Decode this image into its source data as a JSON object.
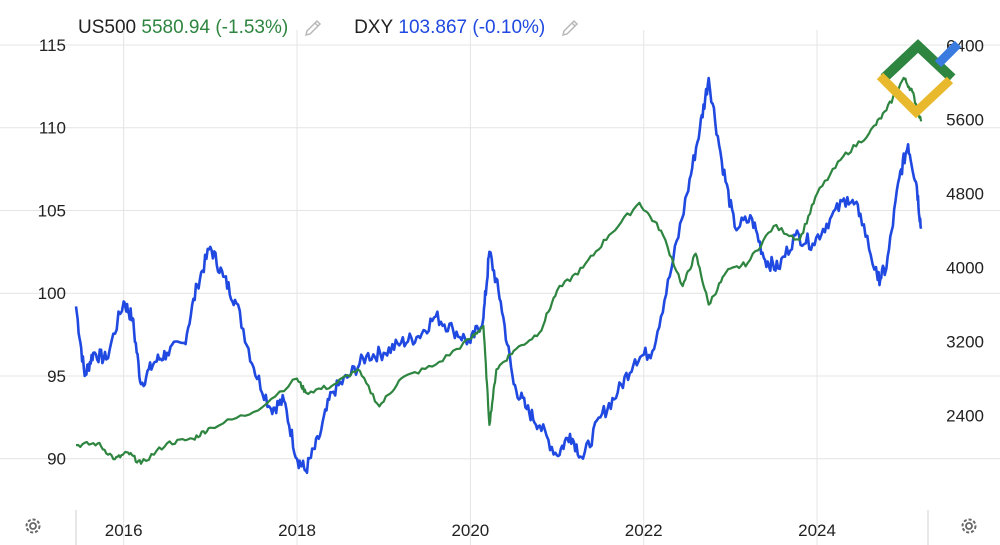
{
  "legend": [
    {
      "symbol": "US500",
      "value": "5580.94",
      "change": "(-1.53%)",
      "color": "#2e8540"
    },
    {
      "symbol": "DXY",
      "value": "103.867",
      "change": "(-0.10%)",
      "color": "#1f49e0"
    }
  ],
  "icons": {
    "edit": "pencil-icon",
    "settings": "gear-icon",
    "logo": "brand-logo"
  },
  "colors": {
    "us500": "#2e8540",
    "dxy": "#1f49e0",
    "grid": "#e4e4e4",
    "text": "#222222"
  },
  "chart_data": {
    "type": "line",
    "x_ticks": [
      "2016",
      "2018",
      "2020",
      "2022",
      "2024"
    ],
    "left_axis": {
      "ticks": [
        "115",
        "110",
        "105",
        "100",
        "95",
        "90"
      ],
      "series": "DXY",
      "ylim": [
        86.9,
        115.3
      ]
    },
    "right_axis": {
      "ticks": [
        "6400",
        "5600",
        "4800",
        "4000",
        "3200",
        "2400"
      ],
      "series": "US500",
      "ylim": [
        1380,
        6460
      ]
    },
    "xlim": [
      2015.45,
      2025.28
    ],
    "grid": true,
    "series": [
      {
        "name": "DXY",
        "axis": "left",
        "color": "#1f49e0",
        "x": [
          2015.45,
          2015.55,
          2015.65,
          2015.8,
          2016.0,
          2016.1,
          2016.2,
          2016.35,
          2016.5,
          2016.7,
          2016.85,
          2017.0,
          2017.15,
          2017.3,
          2017.5,
          2017.7,
          2017.85,
          2018.0,
          2018.1,
          2018.25,
          2018.4,
          2018.6,
          2018.8,
          2019.0,
          2019.2,
          2019.4,
          2019.6,
          2019.8,
          2020.0,
          2020.15,
          2020.22,
          2020.35,
          2020.5,
          2020.65,
          2020.8,
          2021.0,
          2021.15,
          2021.3,
          2021.5,
          2021.7,
          2021.9,
          2022.1,
          2022.3,
          2022.5,
          2022.65,
          2022.75,
          2022.9,
          2023.05,
          2023.25,
          2023.4,
          2023.55,
          2023.75,
          2023.95,
          2024.15,
          2024.35,
          2024.5,
          2024.7,
          2024.8,
          2024.95,
          2025.05,
          2025.15,
          2025.2
        ],
        "y": [
          99.2,
          95.0,
          96.4,
          96.0,
          99.5,
          98.5,
          94.5,
          95.8,
          96.4,
          97.0,
          100.5,
          102.8,
          101.0,
          99.4,
          95.5,
          93.0,
          93.5,
          90.0,
          89.3,
          91.2,
          94.0,
          95.0,
          96.2,
          96.4,
          97.0,
          97.4,
          98.6,
          97.8,
          97.0,
          98.5,
          102.5,
          99.5,
          94.5,
          93.0,
          92.0,
          90.2,
          91.5,
          90.0,
          92.5,
          94.0,
          96.0,
          96.5,
          101.0,
          106.0,
          110.0,
          113.0,
          108.0,
          104.0,
          104.5,
          102.0,
          101.5,
          103.5,
          103.0,
          104.5,
          105.8,
          104.8,
          100.8,
          101.5,
          107.0,
          109.0,
          106.5,
          103.9
        ]
      },
      {
        "name": "US500",
        "axis": "right",
        "color": "#2e8540",
        "x": [
          2015.45,
          2015.7,
          2015.9,
          2016.05,
          2016.2,
          2016.5,
          2016.8,
          2017.0,
          2017.5,
          2018.0,
          2018.1,
          2018.4,
          2018.7,
          2018.95,
          2019.2,
          2019.6,
          2020.0,
          2020.15,
          2020.22,
          2020.3,
          2020.5,
          2020.8,
          2021.0,
          2021.3,
          2021.6,
          2021.95,
          2022.2,
          2022.45,
          2022.6,
          2022.75,
          2022.95,
          2023.2,
          2023.5,
          2023.8,
          2024.0,
          2024.3,
          2024.6,
          2024.8,
          2025.0,
          2025.1,
          2025.2
        ],
        "y": [
          2080,
          2100,
          1930,
          2000,
          1880,
          2100,
          2150,
          2270,
          2440,
          2800,
          2650,
          2720,
          2900,
          2500,
          2800,
          2950,
          3230,
          3370,
          2300,
          2900,
          3100,
          3300,
          3750,
          4000,
          4350,
          4700,
          4400,
          3800,
          4150,
          3600,
          3950,
          4050,
          4450,
          4300,
          4800,
          5200,
          5450,
          5700,
          6050,
          5900,
          5581
        ]
      }
    ]
  }
}
